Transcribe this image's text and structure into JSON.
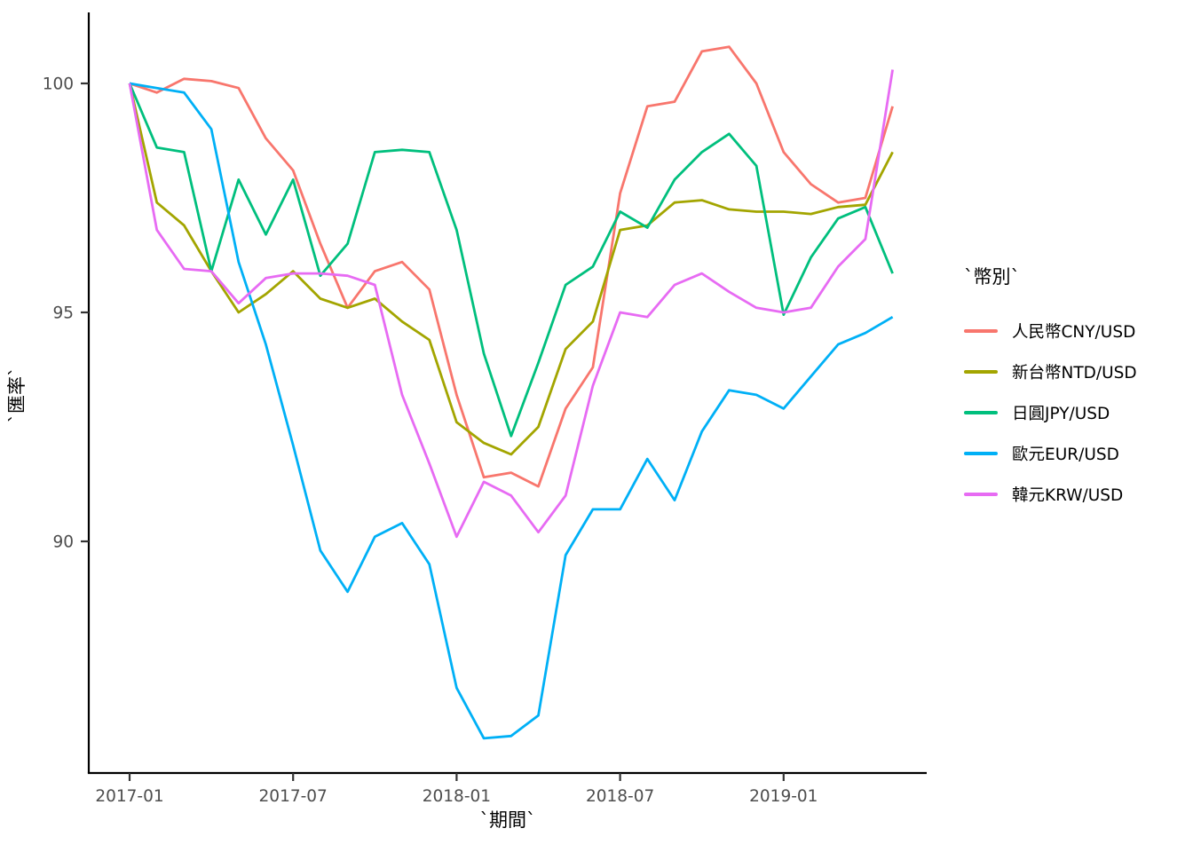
{
  "chart_data": {
    "type": "line",
    "title": "",
    "xlabel": "`期間`",
    "ylabel": "`匯率`",
    "legend_title": "`幣別`",
    "legend_position": "right",
    "grid": false,
    "background": "#ffffff",
    "axis_color": "#000000",
    "tick_label_color": "#4d4d4d",
    "x_tick_labels": [
      "2017-01",
      "2017-07",
      "2018-01",
      "2018-07",
      "2019-01"
    ],
    "x_tick_month_indices": [
      0,
      6,
      12,
      18,
      24
    ],
    "y_ticks": [
      90,
      95,
      100
    ],
    "y_axis_range": [
      86.2,
      101.5
    ],
    "months": [
      "2017-01",
      "2017-02",
      "2017-03",
      "2017-04",
      "2017-05",
      "2017-06",
      "2017-07",
      "2017-08",
      "2017-09",
      "2017-10",
      "2017-11",
      "2017-12",
      "2018-01",
      "2018-02",
      "2018-03",
      "2018-04",
      "2018-05",
      "2018-06",
      "2018-07",
      "2018-08",
      "2018-09",
      "2018-10",
      "2018-11",
      "2018-12",
      "2019-01",
      "2019-02",
      "2019-03",
      "2019-04",
      "2019-05"
    ],
    "series": [
      {
        "name": "人民幣CNY/USD",
        "color": "#F8766D",
        "values": [
          100,
          99.8,
          100.1,
          100.05,
          99.9,
          98.8,
          98.1,
          96.5,
          95.1,
          95.9,
          96.1,
          95.5,
          93.2,
          91.4,
          91.5,
          91.2,
          92.9,
          93.8,
          97.6,
          99.5,
          99.6,
          100.7,
          100.8,
          100.0,
          98.5,
          97.8,
          97.4,
          97.5,
          99.5
        ]
      },
      {
        "name": "新台幣NTD/USD",
        "color": "#A3A500",
        "values": [
          100,
          97.4,
          96.9,
          95.9,
          95.0,
          95.4,
          95.9,
          95.3,
          95.1,
          95.3,
          94.8,
          94.4,
          92.6,
          92.15,
          91.9,
          92.5,
          94.2,
          94.8,
          96.8,
          96.9,
          97.4,
          97.45,
          97.25,
          97.2,
          97.2,
          97.15,
          97.3,
          97.35,
          98.5
        ]
      },
      {
        "name": "日圓JPY/USD",
        "color": "#00BF7D",
        "values": [
          100,
          98.6,
          98.5,
          95.9,
          97.9,
          96.7,
          97.9,
          95.8,
          96.5,
          98.5,
          98.55,
          98.5,
          96.8,
          94.1,
          92.3,
          93.9,
          95.6,
          96.0,
          97.2,
          96.85,
          97.9,
          98.5,
          98.9,
          98.2,
          94.95,
          96.2,
          97.05,
          97.3,
          95.85
        ]
      },
      {
        "name": "歐元EUR/USD",
        "color": "#00B0F6",
        "values": [
          100,
          99.9,
          99.8,
          99.0,
          96.1,
          94.3,
          92.1,
          89.8,
          88.9,
          90.1,
          90.4,
          89.5,
          86.8,
          85.7,
          85.75,
          86.2,
          89.7,
          90.7,
          90.7,
          91.8,
          90.9,
          92.4,
          93.3,
          93.2,
          92.9,
          93.6,
          94.3,
          94.55,
          94.9
        ]
      },
      {
        "name": "韓元KRW/USD",
        "color": "#E76BF3",
        "values": [
          100,
          96.8,
          95.95,
          95.9,
          95.2,
          95.75,
          95.85,
          95.85,
          95.8,
          95.6,
          93.2,
          91.7,
          90.1,
          91.3,
          91.0,
          90.2,
          91.0,
          93.4,
          95.0,
          94.9,
          95.6,
          95.85,
          95.45,
          95.1,
          95.0,
          95.1,
          96.0,
          96.6,
          100.3
        ]
      }
    ]
  }
}
